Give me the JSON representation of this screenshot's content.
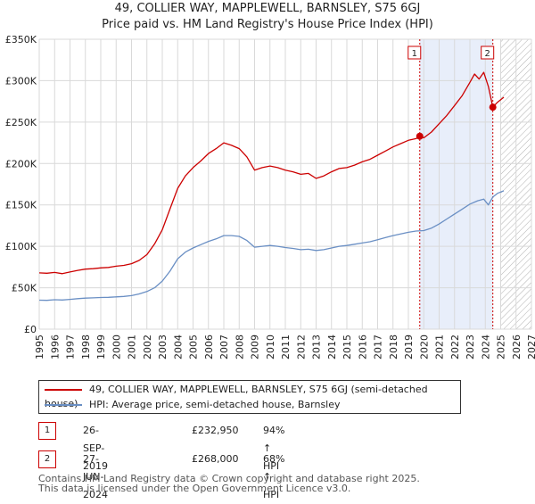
{
  "title_line1": "49, COLLIER WAY, MAPPLEWELL, BARNSLEY, S75 6GJ",
  "title_line2": "Price paid vs. HM Land Registry's House Price Index (HPI)",
  "colors": {
    "property": "#cc0000",
    "hpi": "#6a8fc4",
    "shade": "#e8eefa",
    "marker_border": "#cc0000"
  },
  "chart_data": {
    "type": "line",
    "title": "Price paid vs. HM Land Registry's House Price Index (HPI)",
    "xlabel": "",
    "ylabel": "",
    "xlim": [
      1995,
      2027
    ],
    "ylim": [
      0,
      350000
    ],
    "x_ticks": [
      1995,
      1996,
      1997,
      1998,
      1999,
      2000,
      2001,
      2002,
      2003,
      2004,
      2005,
      2006,
      2007,
      2008,
      2009,
      2010,
      2011,
      2012,
      2013,
      2014,
      2015,
      2016,
      2017,
      2018,
      2019,
      2020,
      2021,
      2022,
      2023,
      2024,
      2025,
      2026,
      2027
    ],
    "y_ticks": [
      {
        "value": 0,
        "label": "£0"
      },
      {
        "value": 50000,
        "label": "£50K"
      },
      {
        "value": 100000,
        "label": "£100K"
      },
      {
        "value": 150000,
        "label": "£150K"
      },
      {
        "value": 200000,
        "label": "£200K"
      },
      {
        "value": 250000,
        "label": "£250K"
      },
      {
        "value": 300000,
        "label": "£300K"
      },
      {
        "value": 350000,
        "label": "£350K"
      }
    ],
    "grid": true,
    "forecast_start": 2025.0,
    "shaded_range": [
      2019.74,
      2024.49
    ],
    "series": [
      {
        "name": "49, COLLIER WAY, MAPPLEWELL, BARNSLEY, S75 6GJ (semi-detached house)",
        "color": "#cc0000",
        "points": [
          [
            1995.0,
            68000
          ],
          [
            1995.5,
            67500
          ],
          [
            1996.0,
            68500
          ],
          [
            1996.5,
            67000
          ],
          [
            1997.0,
            69000
          ],
          [
            1997.5,
            71000
          ],
          [
            1998.0,
            72500
          ],
          [
            1998.5,
            73000
          ],
          [
            1999.0,
            74000
          ],
          [
            1999.5,
            74500
          ],
          [
            2000.0,
            76000
          ],
          [
            2000.5,
            77000
          ],
          [
            2001.0,
            79000
          ],
          [
            2001.5,
            83000
          ],
          [
            2002.0,
            90000
          ],
          [
            2002.5,
            103000
          ],
          [
            2003.0,
            120000
          ],
          [
            2003.5,
            145000
          ],
          [
            2004.0,
            170000
          ],
          [
            2004.5,
            185000
          ],
          [
            2005.0,
            195000
          ],
          [
            2005.5,
            203000
          ],
          [
            2006.0,
            212000
          ],
          [
            2006.5,
            218000
          ],
          [
            2007.0,
            225000
          ],
          [
            2007.5,
            222000
          ],
          [
            2008.0,
            218000
          ],
          [
            2008.5,
            208000
          ],
          [
            2009.0,
            192000
          ],
          [
            2009.5,
            195000
          ],
          [
            2010.0,
            197000
          ],
          [
            2010.5,
            195000
          ],
          [
            2011.0,
            192000
          ],
          [
            2011.5,
            190000
          ],
          [
            2012.0,
            187000
          ],
          [
            2012.5,
            188000
          ],
          [
            2013.0,
            182000
          ],
          [
            2013.5,
            185000
          ],
          [
            2014.0,
            190000
          ],
          [
            2014.5,
            194000
          ],
          [
            2015.0,
            195000
          ],
          [
            2015.5,
            198000
          ],
          [
            2016.0,
            202000
          ],
          [
            2016.5,
            205000
          ],
          [
            2017.0,
            210000
          ],
          [
            2017.5,
            215000
          ],
          [
            2018.0,
            220000
          ],
          [
            2018.5,
            224000
          ],
          [
            2019.0,
            228000
          ],
          [
            2019.5,
            230000
          ],
          [
            2019.74,
            232950
          ],
          [
            2020.0,
            231000
          ],
          [
            2020.5,
            238000
          ],
          [
            2021.0,
            248000
          ],
          [
            2021.5,
            258000
          ],
          [
            2022.0,
            270000
          ],
          [
            2022.5,
            282000
          ],
          [
            2023.0,
            298000
          ],
          [
            2023.3,
            308000
          ],
          [
            2023.6,
            302000
          ],
          [
            2023.9,
            310000
          ],
          [
            2024.2,
            293000
          ],
          [
            2024.49,
            268000
          ],
          [
            2024.8,
            274000
          ],
          [
            2025.2,
            280000
          ]
        ]
      },
      {
        "name": "HPI: Average price, semi-detached house, Barnsley",
        "color": "#6a8fc4",
        "points": [
          [
            1995.0,
            35000
          ],
          [
            1995.5,
            34800
          ],
          [
            1996.0,
            35500
          ],
          [
            1996.5,
            35200
          ],
          [
            1997.0,
            36000
          ],
          [
            1997.5,
            36800
          ],
          [
            1998.0,
            37500
          ],
          [
            1998.5,
            37800
          ],
          [
            1999.0,
            38200
          ],
          [
            1999.5,
            38500
          ],
          [
            2000.0,
            39000
          ],
          [
            2000.5,
            39500
          ],
          [
            2001.0,
            40500
          ],
          [
            2001.5,
            42500
          ],
          [
            2002.0,
            45500
          ],
          [
            2002.5,
            50000
          ],
          [
            2003.0,
            58000
          ],
          [
            2003.5,
            70000
          ],
          [
            2004.0,
            85000
          ],
          [
            2004.5,
            93000
          ],
          [
            2005.0,
            98000
          ],
          [
            2005.5,
            102000
          ],
          [
            2006.0,
            106000
          ],
          [
            2006.5,
            109000
          ],
          [
            2007.0,
            113000
          ],
          [
            2007.5,
            113000
          ],
          [
            2008.0,
            112000
          ],
          [
            2008.5,
            107000
          ],
          [
            2009.0,
            99000
          ],
          [
            2009.5,
            100000
          ],
          [
            2010.0,
            101000
          ],
          [
            2010.5,
            100000
          ],
          [
            2011.0,
            98500
          ],
          [
            2011.5,
            97500
          ],
          [
            2012.0,
            96000
          ],
          [
            2012.5,
            96500
          ],
          [
            2013.0,
            95000
          ],
          [
            2013.5,
            96000
          ],
          [
            2014.0,
            98000
          ],
          [
            2014.5,
            100000
          ],
          [
            2015.0,
            101000
          ],
          [
            2015.5,
            102500
          ],
          [
            2016.0,
            104000
          ],
          [
            2016.5,
            105500
          ],
          [
            2017.0,
            108000
          ],
          [
            2017.5,
            110500
          ],
          [
            2018.0,
            113000
          ],
          [
            2018.5,
            115000
          ],
          [
            2019.0,
            117000
          ],
          [
            2019.5,
            118500
          ],
          [
            2020.0,
            119000
          ],
          [
            2020.5,
            122000
          ],
          [
            2021.0,
            127000
          ],
          [
            2021.5,
            133000
          ],
          [
            2022.0,
            139000
          ],
          [
            2022.5,
            145000
          ],
          [
            2023.0,
            151000
          ],
          [
            2023.5,
            155000
          ],
          [
            2023.9,
            157000
          ],
          [
            2024.2,
            150000
          ],
          [
            2024.49,
            159500
          ],
          [
            2024.8,
            164000
          ],
          [
            2025.2,
            167000
          ]
        ]
      }
    ],
    "annotations": [
      {
        "label": "1",
        "x": 2019.74,
        "y": 232950
      },
      {
        "label": "2",
        "x": 2024.49,
        "y": 268000
      }
    ]
  },
  "legend": {
    "property_label": "49, COLLIER WAY, MAPPLEWELL, BARNSLEY, S75 6GJ (semi-detached house)",
    "hpi_label": "HPI: Average price, semi-detached house, Barnsley"
  },
  "transactions": [
    {
      "badge": "1",
      "date": "26-SEP-2019",
      "price": "£232,950",
      "hpi": "94% ↑ HPI"
    },
    {
      "badge": "2",
      "date": "27-JUN-2024",
      "price": "£268,000",
      "hpi": "68% ↑ HPI"
    }
  ],
  "footer_line1": "Contains HM Land Registry data © Crown copyright and database right 2025.",
  "footer_line2": "This data is licensed under the Open Government Licence v3.0."
}
